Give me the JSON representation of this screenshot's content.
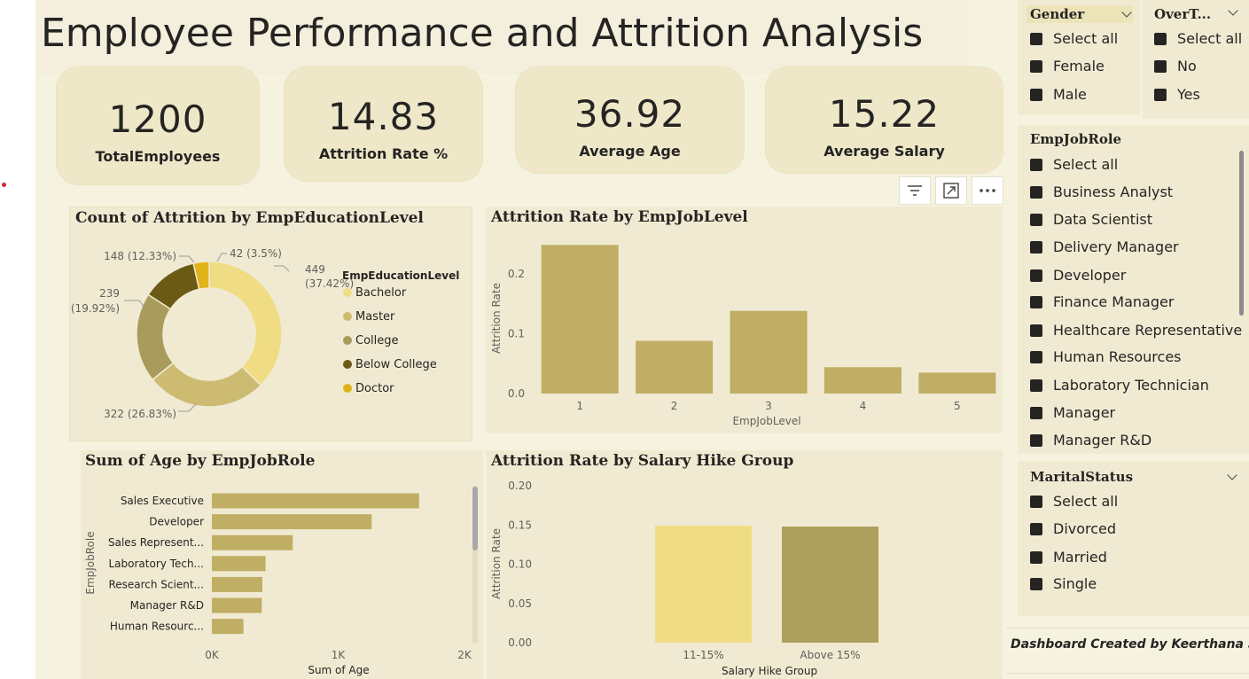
{
  "title": "Employee Performance and Attrition Analysis",
  "kpis": [
    {
      "value": "1200",
      "label": "TotalEmployees"
    },
    {
      "value": "14.83",
      "label": "Attrition Rate %"
    },
    {
      "value": "36.92",
      "label": "Average Age"
    },
    {
      "value": "15.22",
      "label": "Average Salary"
    }
  ],
  "visual_toolbar": {
    "icons": [
      "filter-icon",
      "focus-mode-icon",
      "more-options-icon"
    ]
  },
  "slicers": {
    "gender": {
      "title": "Gender",
      "items": [
        "Select all",
        "Female",
        "Male"
      ]
    },
    "overtime": {
      "title": "OverT...",
      "items": [
        "Select all",
        "No",
        "Yes"
      ]
    },
    "jobrole": {
      "title": "EmpJobRole",
      "items": [
        "Select all",
        "Business Analyst",
        "Data Scientist",
        "Delivery Manager",
        "Developer",
        "Finance Manager",
        "Healthcare Representative",
        "Human Resources",
        "Laboratory Technician",
        "Manager",
        "Manager R&D"
      ]
    },
    "marital": {
      "title": "MaritalStatus",
      "items": [
        "Select all",
        "Divorced",
        "Married",
        "Single"
      ]
    }
  },
  "footer": "Dashboard Created by Keerthana S",
  "colors": {
    "bachelor": "#f0dc82",
    "master": "#cdbb72",
    "college": "#a99b5c",
    "below_college": "#6b5a14",
    "doctor": "#e0b318",
    "bar": "#bfae63",
    "bar_light": "#f0dc82",
    "bar_dark": "#ad9f5e"
  },
  "chart_data": [
    {
      "type": "pie",
      "title": "Count of Attrition by EmpEducationLevel",
      "legend_title": "EmpEducationLevel",
      "legend_position": "right",
      "slices": [
        {
          "name": "Bachelor",
          "value": 449,
          "label": "449",
          "pct": "(37.42%)"
        },
        {
          "name": "Master",
          "value": 322,
          "label": "322 (26.83%)"
        },
        {
          "name": "College",
          "value": 239,
          "label": "239",
          "pct": "(19.92%)"
        },
        {
          "name": "Below College",
          "value": 148,
          "label": "148 (12.33%)"
        },
        {
          "name": "Doctor",
          "value": 42,
          "label": "42 (3.5%)"
        }
      ]
    },
    {
      "type": "bar",
      "title": "Attrition Rate by EmpJobLevel",
      "xlabel": "EmpJobLevel",
      "ylabel": "Attrition Rate",
      "categories": [
        "1",
        "2",
        "3",
        "4",
        "5"
      ],
      "values": [
        0.248,
        0.088,
        0.138,
        0.044,
        0.035
      ],
      "ylim": [
        0,
        0.25
      ],
      "yticks": [
        "0.0",
        "0.1",
        "0.2"
      ]
    },
    {
      "type": "bar",
      "orientation": "horizontal",
      "title": "Sum of Age by EmpJobRole",
      "xlabel": "Sum of Age",
      "ylabel": "EmpJobRole",
      "categories": [
        "Sales Executive",
        "Developer",
        "Sales Represent...",
        "Laboratory Tech...",
        "Research Scient...",
        "Manager R&D",
        "Human Resourc..."
      ],
      "values": [
        1640,
        1265,
        640,
        425,
        400,
        395,
        250
      ],
      "xlim": [
        0,
        2000
      ],
      "xticks": [
        "0K",
        "1K",
        "2K"
      ]
    },
    {
      "type": "bar",
      "title": "Attrition Rate by Salary Hike Group",
      "xlabel": "Salary Hike Group",
      "ylabel": "Attrition Rate",
      "categories": [
        "11-15%",
        "Above 15%"
      ],
      "values": [
        0.149,
        0.148
      ],
      "ylim": [
        0,
        0.2
      ],
      "yticks": [
        "0.00",
        "0.05",
        "0.10",
        "0.15",
        "0.20"
      ]
    }
  ]
}
